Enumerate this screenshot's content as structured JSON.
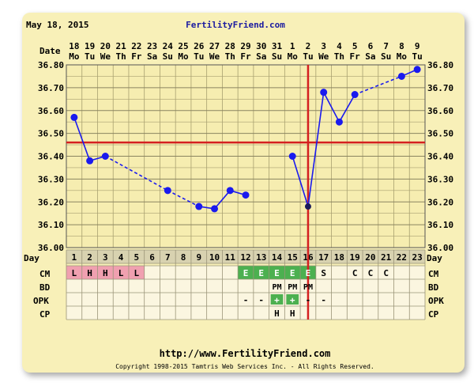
{
  "header": {
    "date": "May 18, 2015",
    "site": "FertilityFriend.com"
  },
  "row_labels": {
    "date": "Date",
    "day": "Day",
    "cm": "CM",
    "bd": "BD",
    "opk": "OPK",
    "cp": "CP"
  },
  "footer": {
    "url": "http://www.FertilityFriend.com",
    "copyright": "Copyright 1998-2015 Tamtris Web Services Inc. - All Rights Reserved."
  },
  "chart_data": {
    "type": "line",
    "title": "",
    "xlabel": "Day",
    "ylabel": "",
    "ylim": [
      36.0,
      36.8
    ],
    "y_ticks": [
      "36.00",
      "36.10",
      "36.20",
      "36.30",
      "36.40",
      "36.50",
      "36.60",
      "36.70",
      "36.80"
    ],
    "dates": [
      "18",
      "19",
      "20",
      "21",
      "22",
      "23",
      "24",
      "25",
      "26",
      "27",
      "28",
      "29",
      "30",
      "31",
      "1",
      "2",
      "3",
      "4",
      "5",
      "6",
      "7",
      "8",
      "9"
    ],
    "weekdays": [
      "Mo",
      "Tu",
      "We",
      "Th",
      "Fr",
      "Sa",
      "Su",
      "Mo",
      "Tu",
      "We",
      "Th",
      "Fr",
      "Sa",
      "Su",
      "Mo",
      "Tu",
      "We",
      "Th",
      "Fr",
      "Sa",
      "Su",
      "Mo",
      "Tu"
    ],
    "days": [
      "1",
      "2",
      "3",
      "4",
      "5",
      "6",
      "7",
      "8",
      "9",
      "10",
      "11",
      "12",
      "13",
      "14",
      "15",
      "16",
      "17",
      "18",
      "19",
      "20",
      "21",
      "22",
      "23"
    ],
    "temps": [
      36.57,
      36.38,
      36.4,
      null,
      null,
      null,
      36.25,
      null,
      36.18,
      36.17,
      36.25,
      36.23,
      null,
      null,
      36.4,
      36.18,
      36.68,
      36.55,
      36.67,
      null,
      null,
      36.75,
      36.78
    ],
    "dashed_segments": [
      [
        3,
        7
      ],
      [
        7,
        9
      ],
      [
        19,
        22
      ]
    ],
    "coverline": 36.46,
    "ovulation_day": 16,
    "grid": true,
    "colors": {
      "line": "#1a1aee",
      "coverline": "#d42020",
      "grid": "#a8a070",
      "cm_menses": "#f0a0b0",
      "cm_egg": "#4cb050"
    },
    "cm": [
      {
        "day": 1,
        "label": "L",
        "kind": "menses"
      },
      {
        "day": 2,
        "label": "H",
        "kind": "menses"
      },
      {
        "day": 3,
        "label": "H",
        "kind": "menses"
      },
      {
        "day": 4,
        "label": "L",
        "kind": "menses"
      },
      {
        "day": 5,
        "label": "L",
        "kind": "menses"
      },
      {
        "day": 12,
        "label": "E",
        "kind": "egg"
      },
      {
        "day": 13,
        "label": "E",
        "kind": "egg"
      },
      {
        "day": 14,
        "label": "E",
        "kind": "egg"
      },
      {
        "day": 15,
        "label": "E",
        "kind": "egg"
      },
      {
        "day": 16,
        "label": "E",
        "kind": "egg"
      },
      {
        "day": 17,
        "label": "S",
        "kind": "plain"
      },
      {
        "day": 19,
        "label": "C",
        "kind": "plain"
      },
      {
        "day": 20,
        "label": "C",
        "kind": "plain"
      },
      {
        "day": 21,
        "label": "C",
        "kind": "plain"
      }
    ],
    "bd": [
      {
        "day": 14,
        "label": "PM"
      },
      {
        "day": 15,
        "label": "PM"
      },
      {
        "day": 16,
        "label": "PM"
      }
    ],
    "opk": [
      {
        "day": 12,
        "label": "-",
        "positive": false
      },
      {
        "day": 13,
        "label": "-",
        "positive": false
      },
      {
        "day": 14,
        "label": "+",
        "positive": true
      },
      {
        "day": 15,
        "label": "+",
        "positive": true
      },
      {
        "day": 16,
        "label": "-",
        "positive": false
      },
      {
        "day": 17,
        "label": "-",
        "positive": false
      }
    ],
    "cp": [
      {
        "day": 14,
        "label": "H"
      },
      {
        "day": 15,
        "label": "H"
      }
    ]
  }
}
